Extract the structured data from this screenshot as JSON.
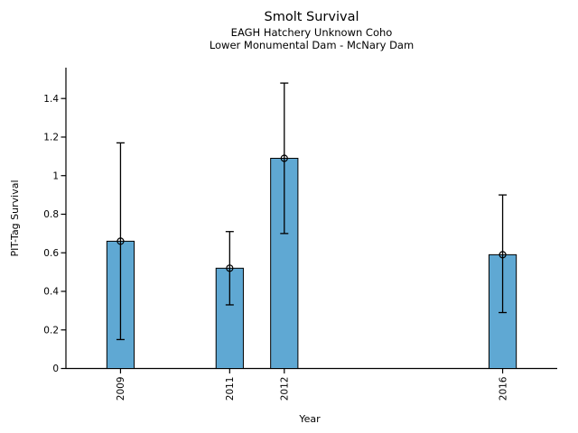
{
  "figure": {
    "kind": "static-plot-image"
  },
  "chart_data": {
    "type": "bar",
    "title": "Smolt Survival",
    "subtitle": [
      "EAGH Hatchery Unknown Coho",
      "Lower Monumental Dam - McNary Dam"
    ],
    "xlabel": "Year",
    "ylabel": "PIT-Tag Survival",
    "categories": [
      2009,
      2011,
      2012,
      2016
    ],
    "values": [
      0.66,
      0.52,
      1.09,
      0.59
    ],
    "error_low": [
      0.15,
      0.33,
      0.7,
      0.29
    ],
    "error_high": [
      1.17,
      0.71,
      1.48,
      0.9
    ],
    "yticks": [
      0,
      0.2,
      0.4,
      0.6,
      0.8,
      1,
      1.2,
      1.4
    ],
    "xlim": [
      2008,
      2017
    ],
    "ylim": [
      0,
      1.56
    ],
    "bar_width_years": 0.5,
    "bar_color": "#5FA8D3",
    "bar_edge_color": "#000000",
    "error_color": "#000000",
    "marker": "open-circle",
    "grid": false,
    "legend": "none"
  }
}
